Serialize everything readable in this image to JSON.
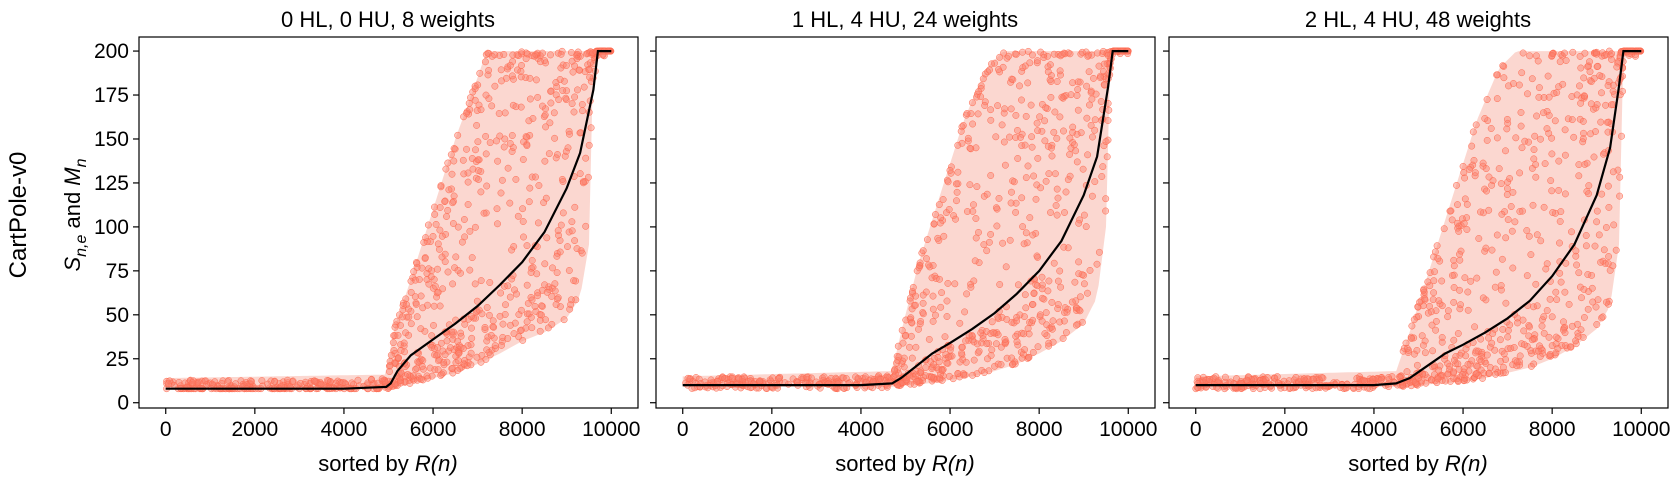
{
  "figure": {
    "row_label": "CartPole-v0",
    "ylabel_parts": {
      "s": "S",
      "s_sub": "n,e",
      "and": " and ",
      "m": "M",
      "m_sub": "n"
    },
    "xlabel_prefix": "sorted by ",
    "xlabel_var": "R(n)"
  },
  "colors": {
    "points": "#fa7f6a",
    "band": "#f8b7aa",
    "mean": "#000000"
  },
  "chart_data": [
    {
      "type": "scatter",
      "title": "0 HL, 0 HU, 8 weights",
      "xlabel": "sorted by R(n)",
      "ylabel": "S n,e and M n",
      "xlim": [
        -600,
        10600
      ],
      "ylim": [
        -3,
        208
      ],
      "xticks": [
        0,
        2000,
        4000,
        6000,
        8000,
        10000
      ],
      "yticks": [
        0,
        25,
        50,
        75,
        100,
        125,
        150,
        175,
        200
      ],
      "show_yticklabels": true,
      "grid": false,
      "onset": 5000,
      "series": [
        {
          "kind": "mean_line",
          "x": [
            0,
            1000,
            2000,
            3000,
            4000,
            4950,
            5050,
            5200,
            5500,
            6000,
            6500,
            7000,
            7500,
            8000,
            8500,
            9000,
            9300,
            9600,
            9700,
            9800,
            10000
          ],
          "y": [
            8,
            8,
            8,
            8,
            8,
            9,
            11,
            18,
            27,
            36,
            45,
            55,
            67,
            80,
            97,
            122,
            142,
            178,
            200,
            200,
            200
          ]
        },
        {
          "kind": "upper_envelope",
          "x": [
            0,
            4950,
            5100,
            5500,
            6000,
            6500,
            7000,
            7200,
            7500,
            8000,
            8500,
            9000,
            9500,
            10000
          ],
          "y": [
            14,
            16,
            40,
            70,
            110,
            150,
            185,
            200,
            200,
            200,
            200,
            200,
            200,
            200
          ]
        },
        {
          "kind": "lower_envelope",
          "x": [
            0,
            4950,
            5100,
            5500,
            6000,
            6500,
            7000,
            7500,
            8000,
            8500,
            9000,
            9300,
            9500,
            9600,
            9800,
            10000
          ],
          "y": [
            8,
            8,
            9,
            11,
            14,
            17,
            22,
            28,
            35,
            40,
            48,
            60,
            90,
            200,
            200,
            200
          ]
        }
      ]
    },
    {
      "type": "scatter",
      "title": "1 HL, 4 HU, 24 weights",
      "xlabel": "sorted by R(n)",
      "ylabel": "",
      "xlim": [
        -600,
        10600
      ],
      "ylim": [
        -3,
        208
      ],
      "xticks": [
        0,
        2000,
        4000,
        6000,
        8000,
        10000
      ],
      "yticks": [
        0,
        25,
        50,
        75,
        100,
        125,
        150,
        175,
        200
      ],
      "show_yticklabels": false,
      "grid": false,
      "onset": 4750,
      "series": [
        {
          "kind": "mean_line",
          "x": [
            0,
            1000,
            2000,
            3000,
            4000,
            4700,
            4900,
            5200,
            5600,
            6000,
            6500,
            7000,
            7500,
            8000,
            8500,
            9000,
            9300,
            9550,
            9650,
            9800,
            10000
          ],
          "y": [
            10,
            10,
            10,
            10,
            10,
            11,
            14,
            20,
            28,
            34,
            42,
            51,
            62,
            75,
            92,
            118,
            140,
            180,
            200,
            200,
            200
          ]
        },
        {
          "kind": "upper_envelope",
          "x": [
            0,
            4700,
            4900,
            5300,
            5800,
            6300,
            6800,
            7200,
            7500,
            8000,
            9000,
            10000
          ],
          "y": [
            15,
            18,
            40,
            80,
            120,
            160,
            190,
            200,
            200,
            200,
            200,
            200
          ]
        },
        {
          "kind": "lower_envelope",
          "x": [
            0,
            4700,
            5000,
            5500,
            6000,
            6500,
            7000,
            7500,
            8000,
            8500,
            9000,
            9300,
            9500,
            9600,
            9800,
            10000
          ],
          "y": [
            9,
            9,
            10,
            11,
            13,
            15,
            18,
            22,
            28,
            35,
            45,
            60,
            100,
            200,
            200,
            200
          ]
        }
      ]
    },
    {
      "type": "scatter",
      "title": "2 HL, 4 HU, 48 weights",
      "xlabel": "sorted by R(n)",
      "ylabel": "",
      "xlim": [
        -600,
        10600
      ],
      "ylim": [
        -3,
        208
      ],
      "xticks": [
        0,
        2000,
        4000,
        6000,
        8000,
        10000
      ],
      "yticks": [
        0,
        25,
        50,
        75,
        100,
        125,
        150,
        175,
        200
      ],
      "show_yticklabels": false,
      "grid": false,
      "onset": 4600,
      "series": [
        {
          "kind": "mean_line",
          "x": [
            0,
            1000,
            2000,
            3000,
            4000,
            4500,
            4800,
            5200,
            5600,
            6000,
            6500,
            7000,
            7500,
            8000,
            8500,
            9000,
            9300,
            9500,
            9600,
            9800,
            10000
          ],
          "y": [
            10,
            10,
            10,
            10,
            10,
            11,
            14,
            21,
            28,
            33,
            40,
            48,
            58,
            72,
            90,
            118,
            145,
            180,
            200,
            200,
            200
          ]
        },
        {
          "kind": "upper_envelope",
          "x": [
            0,
            4500,
            4800,
            5300,
            5800,
            6300,
            6800,
            7200,
            7500,
            8000,
            9000,
            10000
          ],
          "y": [
            15,
            18,
            40,
            80,
            120,
            160,
            190,
            200,
            200,
            200,
            200,
            200
          ]
        },
        {
          "kind": "lower_envelope",
          "x": [
            0,
            4500,
            5000,
            5500,
            6000,
            6500,
            7000,
            7500,
            8000,
            8500,
            9000,
            9300,
            9500,
            9600,
            9800,
            10000
          ],
          "y": [
            9,
            9,
            10,
            11,
            12,
            14,
            17,
            20,
            25,
            32,
            42,
            55,
            90,
            200,
            200,
            200
          ]
        }
      ]
    }
  ]
}
